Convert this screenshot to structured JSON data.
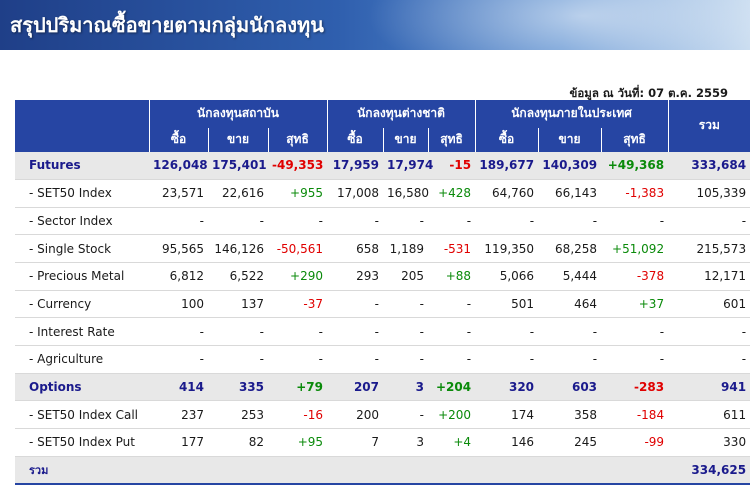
{
  "header": {
    "title": "สรุปปริมาณซื้อขายตามกลุ่มนักลงทุน",
    "as_of": "ข้อมูล ณ วันที่: 07 ต.ค. 2559"
  },
  "columns": {
    "groups": [
      "นักลงทุนสถาบัน",
      "นักลงทุนต่างชาติ",
      "นักลงทุนภายในประเทศ"
    ],
    "total": "รวม",
    "buy": "ซื้อ",
    "sell": "ขาย",
    "net": "สุทธิ"
  },
  "rows": [
    {
      "label": "Futures",
      "group": true,
      "values": [
        "126,048",
        "175,401",
        "-49,353",
        "17,959",
        "17,974",
        "-15",
        "189,677",
        "140,309",
        "+49,368",
        "333,684"
      ]
    },
    {
      "label": "- SET50 Index",
      "group": false,
      "values": [
        "23,571",
        "22,616",
        "+955",
        "17,008",
        "16,580",
        "+428",
        "64,760",
        "66,143",
        "-1,383",
        "105,339"
      ]
    },
    {
      "label": "- Sector Index",
      "group": false,
      "values": [
        "-",
        "-",
        "-",
        "-",
        "-",
        "-",
        "-",
        "-",
        "-",
        "-"
      ]
    },
    {
      "label": "- Single Stock",
      "group": false,
      "values": [
        "95,565",
        "146,126",
        "-50,561",
        "658",
        "1,189",
        "-531",
        "119,350",
        "68,258",
        "+51,092",
        "215,573"
      ]
    },
    {
      "label": "- Precious Metal",
      "group": false,
      "values": [
        "6,812",
        "6,522",
        "+290",
        "293",
        "205",
        "+88",
        "5,066",
        "5,444",
        "-378",
        "12,171"
      ]
    },
    {
      "label": "- Currency",
      "group": false,
      "values": [
        "100",
        "137",
        "-37",
        "-",
        "-",
        "-",
        "501",
        "464",
        "+37",
        "601"
      ]
    },
    {
      "label": "- Interest Rate",
      "group": false,
      "values": [
        "-",
        "-",
        "-",
        "-",
        "-",
        "-",
        "-",
        "-",
        "-",
        "-"
      ]
    },
    {
      "label": "- Agriculture",
      "group": false,
      "values": [
        "-",
        "-",
        "-",
        "-",
        "-",
        "-",
        "-",
        "-",
        "-",
        "-"
      ]
    },
    {
      "label": "Options",
      "group": true,
      "values": [
        "414",
        "335",
        "+79",
        "207",
        "3",
        "+204",
        "320",
        "603",
        "-283",
        "941"
      ]
    },
    {
      "label": "- SET50 Index Call",
      "group": false,
      "values": [
        "237",
        "253",
        "-16",
        "200",
        "-",
        "+200",
        "174",
        "358",
        "-184",
        "611"
      ]
    },
    {
      "label": "- SET50 Index Put",
      "group": false,
      "values": [
        "177",
        "82",
        "+95",
        "7",
        "3",
        "+4",
        "146",
        "245",
        "-99",
        "330"
      ]
    }
  ],
  "total_row": {
    "label": "รวม",
    "value": "334,625"
  },
  "colors": {
    "header_bg": "#2645a3",
    "negative": "#e00000",
    "positive": "#0a8a0a",
    "group_text": "#1a1a8c"
  }
}
